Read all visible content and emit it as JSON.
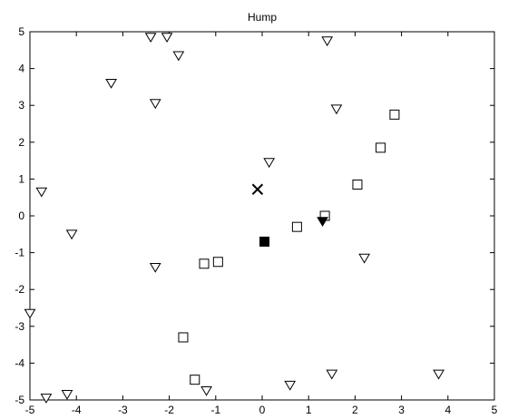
{
  "chart_data": {
    "type": "scatter",
    "title": "Hump",
    "xlabel": "",
    "ylabel": "",
    "xlim": [
      -5,
      5
    ],
    "ylim": [
      -5,
      5
    ],
    "xticks": [
      "-5",
      "-4",
      "-3",
      "-2",
      "-1",
      "0",
      "1",
      "2",
      "3",
      "4",
      "5"
    ],
    "yticks": [
      "-5",
      "-4",
      "-3",
      "-2",
      "-1",
      "0",
      "1",
      "2",
      "3",
      "4",
      "5"
    ],
    "grid": false,
    "series": [
      {
        "marker": "open-triangle-down",
        "points": [
          [
            -2.4,
            4.85
          ],
          [
            -2.05,
            4.85
          ],
          [
            -1.8,
            4.35
          ],
          [
            1.4,
            4.75
          ],
          [
            -3.25,
            3.6
          ],
          [
            -2.3,
            3.05
          ],
          [
            1.6,
            2.9
          ],
          [
            0.15,
            1.45
          ],
          [
            -4.75,
            0.65
          ],
          [
            -4.1,
            -0.5
          ],
          [
            -2.3,
            -1.4
          ],
          [
            2.2,
            -1.15
          ],
          [
            -5.0,
            -2.65
          ],
          [
            1.5,
            -4.3
          ],
          [
            3.8,
            -4.3
          ],
          [
            0.6,
            -4.6
          ],
          [
            -1.2,
            -4.75
          ],
          [
            -4.2,
            -4.85
          ],
          [
            -4.65,
            -4.95
          ]
        ]
      },
      {
        "marker": "open-square",
        "points": [
          [
            2.85,
            2.75
          ],
          [
            2.55,
            1.85
          ],
          [
            2.05,
            0.85
          ],
          [
            1.35,
            0.0
          ],
          [
            0.75,
            -0.3
          ],
          [
            -1.25,
            -1.3
          ],
          [
            -0.95,
            -1.25
          ],
          [
            -1.7,
            -3.3
          ],
          [
            -1.45,
            -4.45
          ]
        ]
      },
      {
        "marker": "x",
        "points": [
          [
            -0.1,
            0.72
          ]
        ]
      },
      {
        "marker": "filled-square",
        "points": [
          [
            0.05,
            -0.7
          ]
        ]
      },
      {
        "marker": "filled-triangle-down",
        "points": [
          [
            1.3,
            -0.15
          ]
        ]
      }
    ]
  }
}
